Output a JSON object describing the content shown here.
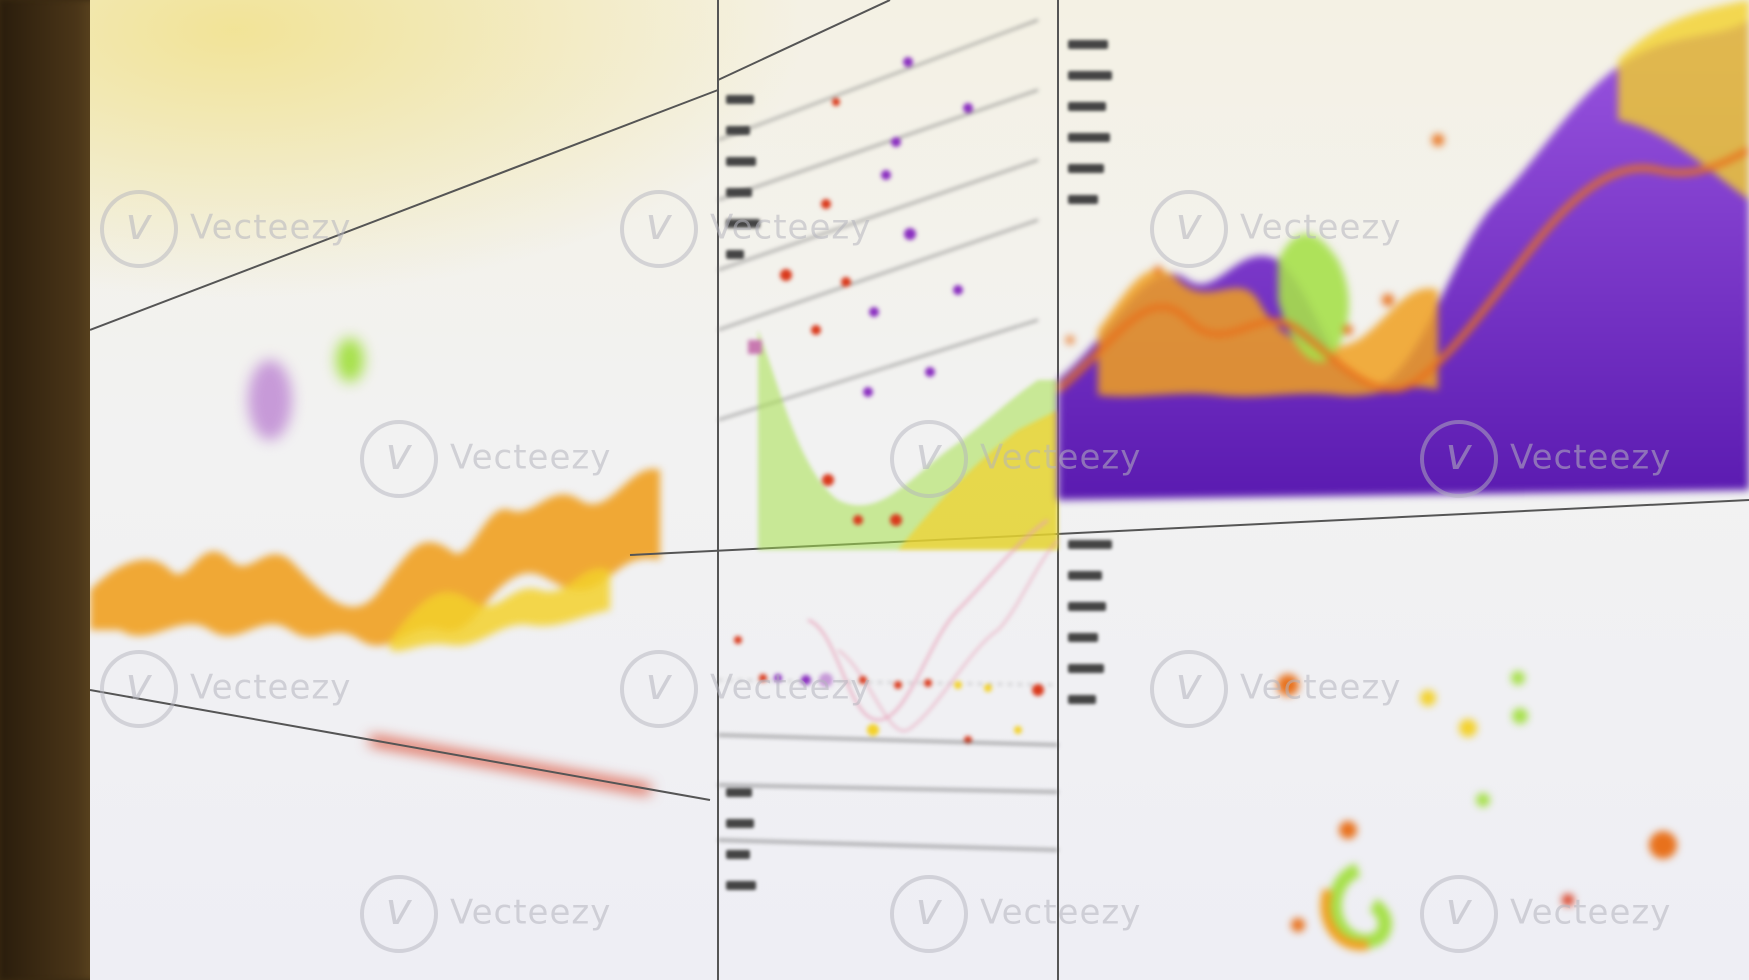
{
  "photo": {
    "subject": "monitor-displaying-analytics-dashboard",
    "colors": {
      "orange": "#f0a020",
      "yellow": "#f3d12b",
      "lime": "#a6e04a",
      "purple": "#7a2fd0",
      "red": "#d9391c",
      "pink": "#e8a0b8",
      "bezel": "#3a2a12",
      "screen": "#f2f2f2"
    }
  },
  "watermark": {
    "text": "Vecteezy",
    "icon": "vecteezy-logo-icon"
  }
}
